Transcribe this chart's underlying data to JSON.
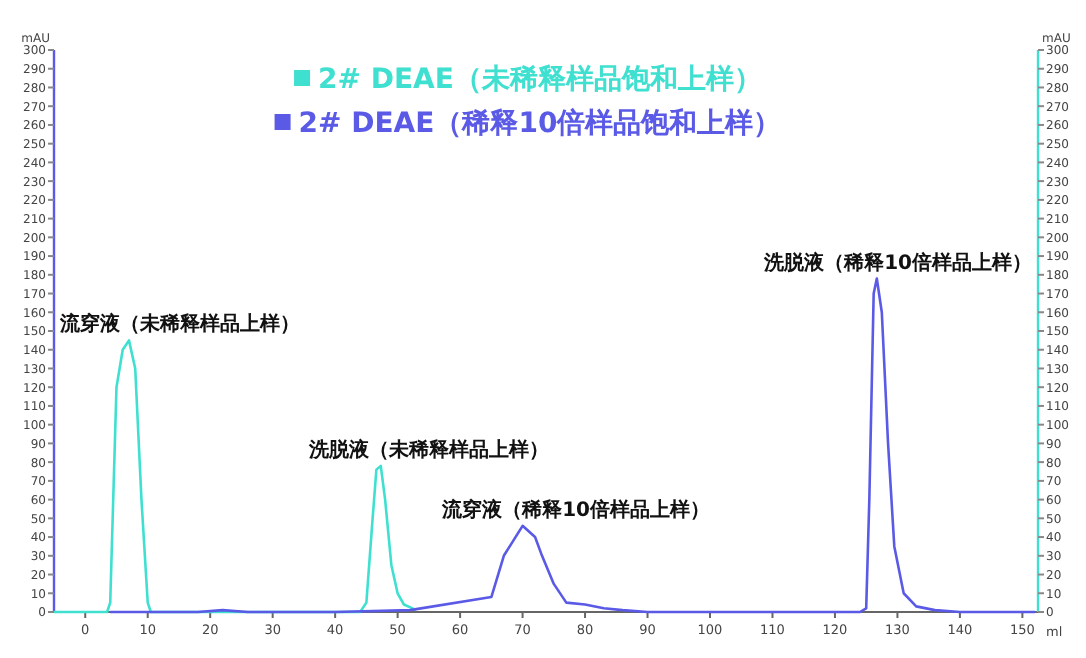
{
  "chart_data": {
    "type": "line",
    "xlabel": "ml",
    "ylabel": "mAU",
    "y2label": "mAU",
    "legend": "top",
    "xlim": [
      -5,
      152.5
    ],
    "xticks": [
      0,
      10,
      20,
      30,
      40,
      50,
      60,
      70,
      80,
      90,
      100,
      110,
      120,
      130,
      140,
      150
    ],
    "ylim": [
      0,
      300
    ],
    "yticks": [
      0,
      10,
      20,
      30,
      40,
      50,
      60,
      70,
      80,
      90,
      100,
      110,
      120,
      130,
      140,
      150,
      160,
      170,
      180,
      190,
      200,
      210,
      220,
      230,
      240,
      250,
      260,
      270,
      280,
      290,
      300
    ],
    "y2lim": [
      0,
      300
    ],
    "y2ticks": [
      0,
      10,
      20,
      30,
      40,
      50,
      60,
      70,
      80,
      90,
      100,
      110,
      120,
      130,
      140,
      150,
      160,
      170,
      180,
      190,
      200,
      210,
      220,
      230,
      240,
      250,
      260,
      270,
      280,
      290,
      300
    ],
    "series": [
      {
        "name": "2# DEAE（未稀释样品饱和上样）",
        "color": "#40e0d0",
        "axis": "y2",
        "x": [
          -5,
          3.5,
          4,
          5,
          6,
          7,
          8,
          9,
          10,
          10.5,
          44,
          45,
          46,
          46.6,
          47.3,
          48,
          49,
          50,
          51,
          53
        ],
        "values": [
          0,
          0,
          5,
          120,
          140,
          145,
          130,
          60,
          5,
          0,
          0,
          5,
          50,
          76,
          78,
          60,
          25,
          10,
          4,
          1
        ]
      },
      {
        "name": "2# DEAE（稀释10倍样品饱和上样）",
        "color": "#5a5ae6",
        "x": [
          4,
          18,
          22,
          26,
          40,
          52,
          65,
          67,
          70,
          72,
          73,
          75,
          77,
          80,
          83,
          86,
          90,
          100,
          124,
          125,
          125.5,
          126.2,
          126.7,
          127.5,
          128.5,
          129.5,
          131,
          133,
          136,
          140,
          152
        ],
        "values": [
          0,
          0,
          1,
          0,
          0,
          1,
          8,
          30,
          46,
          40,
          31,
          15,
          5,
          4,
          2,
          1,
          0,
          0,
          0,
          2,
          60,
          170,
          178,
          160,
          90,
          35,
          10,
          3,
          1,
          0,
          0
        ]
      }
    ],
    "annotations": [
      {
        "text": "流穿液（未稀释样品上样）",
        "x": 7,
        "y": 145
      },
      {
        "text": "洗脱液（未稀释样品上样）",
        "x": 47.3,
        "y": 78
      },
      {
        "text": "流穿液（稀释10倍样品上样）",
        "x": 70,
        "y": 46
      },
      {
        "text": "洗脱液（稀释10倍样品上样）",
        "x": 126.7,
        "y": 178
      }
    ]
  }
}
